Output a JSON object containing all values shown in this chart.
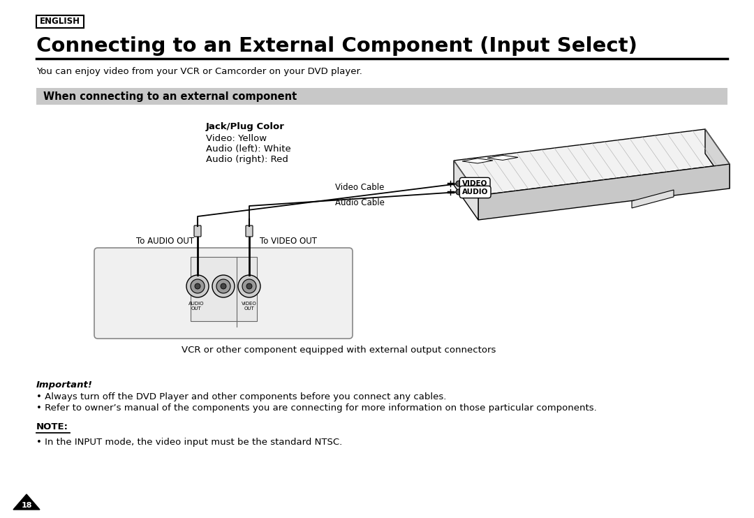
{
  "bg_color": "#ffffff",
  "english_label": "ENGLISH",
  "title": "Connecting to an External Component (Input Select)",
  "subtitle": "You can enjoy video from your VCR or Camcorder on your DVD player.",
  "section_header": "When connecting to an external component",
  "section_header_bg": "#c8c8c8",
  "jack_plug_title": "Jack/Plug Color",
  "jack_plug_lines": [
    "Video: Yellow",
    "Audio (left): White",
    "Audio (right): Red"
  ],
  "video_cable_label": "Video Cable",
  "audio_cable_label": "Audio Cable",
  "to_audio_out": "To AUDIO OUT",
  "to_video_out": "To VIDEO OUT",
  "audio_out_label": "AUDIO\nOUT",
  "video_out_label": "VIDEO\nOUT",
  "vcr_caption": "VCR or other component equipped with external output connectors",
  "important_title": "Important!",
  "important_bullets": [
    "• Always turn off the DVD Player and other components before you connect any cables.",
    "• Refer to owner’s manual of the components you are connecting for more information on those particular components."
  ],
  "note_title": "NOTE:",
  "note_bullet": "• In the INPUT mode, the video input must be the standard NTSC.",
  "page_number": "18",
  "video_label": "VIDEO",
  "audio_label": "AUDIO"
}
